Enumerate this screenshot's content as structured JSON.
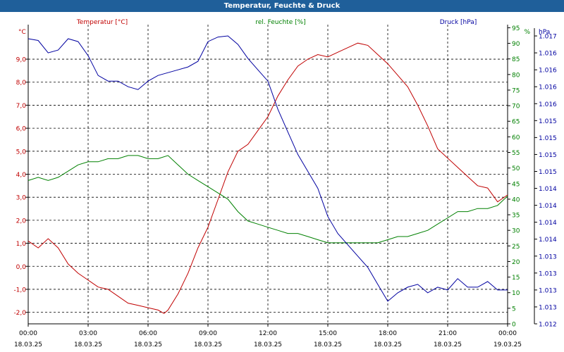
{
  "window": {
    "title": "Temperatur, Feuchte & Druck"
  },
  "colors": {
    "temperature": "#c00000",
    "humidity": "#008000",
    "pressure": "#0000a0",
    "axis": "#000000",
    "grid": "#000000"
  },
  "chart_data": {
    "type": "line",
    "grid": true,
    "x_ticks": [
      {
        "time": "00:00",
        "date": "18.03.25"
      },
      {
        "time": "03:00",
        "date": "18.03.25"
      },
      {
        "time": "06:00",
        "date": "18.03.25"
      },
      {
        "time": "09:00",
        "date": "18.03.25"
      },
      {
        "time": "12:00",
        "date": "18.03.25"
      },
      {
        "time": "15:00",
        "date": "18.03.25"
      },
      {
        "time": "18:00",
        "date": "18.03.25"
      },
      {
        "time": "21:00",
        "date": "18.03.25"
      },
      {
        "time": "00:00",
        "date": "19.03.25"
      }
    ],
    "xlim": [
      0,
      24
    ],
    "axes": {
      "left": {
        "unit": "°C",
        "ylim": [
          -2.5,
          10.5
        ],
        "ticks": [
          "9,0",
          "8,0",
          "7,0",
          "6,0",
          "5,0",
          "4,0",
          "3,0",
          "2,0",
          "1,0",
          "0,0",
          "-1,0",
          "-2,0"
        ],
        "tick_values": [
          9,
          8,
          7,
          6,
          5,
          4,
          3,
          2,
          1,
          0,
          -1,
          -2
        ]
      },
      "mid": {
        "unit": "%",
        "ylim": [
          0,
          96
        ],
        "ticks": [
          "95",
          "90",
          "85",
          "80",
          "75",
          "70",
          "65",
          "60",
          "55",
          "50",
          "45",
          "40",
          "35",
          "30",
          "25",
          "20",
          "15",
          "10",
          "5",
          "0"
        ],
        "tick_values": [
          95,
          90,
          85,
          80,
          75,
          70,
          65,
          60,
          55,
          50,
          45,
          40,
          35,
          30,
          25,
          20,
          15,
          10,
          5,
          0
        ]
      },
      "right": {
        "unit": "hPa",
        "ylim": [
          1011.9,
          1017.2
        ],
        "ticks": [
          "1.017",
          "1.016",
          "1.016",
          "1.016",
          "1.016",
          "1.015",
          "1.015",
          "1.015",
          "1.015",
          "1.014",
          "1.014",
          "1.014",
          "1.014",
          "1.013",
          "1.013",
          "1.013",
          "1.013",
          "1.012"
        ],
        "tick_values": [
          1017.0,
          1016.7,
          1016.4,
          1016.1,
          1015.8,
          1015.5,
          1015.2,
          1014.9,
          1014.6,
          1014.3,
          1014.0,
          1013.7,
          1013.4,
          1013.1,
          1012.8,
          1012.5,
          1012.2,
          1011.9
        ]
      }
    },
    "series": [
      {
        "name": "Temperatur [°C]",
        "axis": "left",
        "x": [
          0,
          0.5,
          1,
          1.5,
          2,
          2.5,
          3,
          3.5,
          4,
          4.5,
          5,
          5.5,
          6,
          6.5,
          6.8,
          7,
          7.5,
          8,
          8.5,
          9,
          9.5,
          10,
          10.5,
          11,
          11.5,
          12,
          12.5,
          13,
          13.5,
          14,
          14.5,
          15,
          15.5,
          16,
          16.5,
          17,
          17.5,
          18,
          18.5,
          19,
          19.5,
          20,
          20.5,
          21,
          21.5,
          22,
          22.5,
          23,
          23.5,
          24
        ],
        "y": [
          1.1,
          0.8,
          1.2,
          0.8,
          0.1,
          -0.3,
          -0.6,
          -0.9,
          -1.0,
          -1.3,
          -1.6,
          -1.7,
          -1.8,
          -1.9,
          -2.05,
          -1.9,
          -1.2,
          -0.3,
          0.8,
          1.7,
          2.9,
          4.1,
          5.0,
          5.3,
          5.9,
          6.5,
          7.4,
          8.1,
          8.7,
          9.0,
          9.2,
          9.1,
          9.3,
          9.5,
          9.7,
          9.6,
          9.2,
          8.8,
          8.3,
          7.8,
          7.0,
          6.1,
          5.1,
          4.7,
          4.3,
          3.9,
          3.5,
          3.4,
          2.8,
          3.1
        ]
      },
      {
        "name": "rel. Feuchte [%]",
        "axis": "mid",
        "x": [
          0,
          0.5,
          1,
          1.5,
          2,
          2.5,
          3,
          3.5,
          4,
          4.5,
          5,
          5.5,
          6,
          6.5,
          7,
          7.5,
          8,
          8.5,
          9,
          9.5,
          10,
          10.5,
          11,
          11.5,
          12,
          12.5,
          13,
          13.5,
          14,
          14.5,
          15,
          15.5,
          16,
          16.5,
          17,
          17.5,
          18,
          18.5,
          19,
          19.5,
          20,
          20.5,
          21,
          21.5,
          22,
          22.5,
          23,
          23.5,
          24
        ],
        "y": [
          46,
          47,
          46,
          47,
          49,
          51,
          52,
          52,
          53,
          53,
          54,
          54,
          53,
          53,
          54,
          51,
          48,
          46,
          44,
          42,
          40,
          36,
          33,
          32,
          31,
          30,
          29,
          29,
          28,
          27,
          26,
          26,
          26,
          26,
          26,
          26,
          27,
          28,
          28,
          29,
          30,
          32,
          34,
          36,
          36,
          37,
          37,
          38,
          41
        ]
      },
      {
        "name": "Druck [hPa]",
        "axis": "right",
        "x": [
          0,
          0.5,
          1,
          1.5,
          2,
          2.5,
          3,
          3.5,
          4,
          4.5,
          5,
          5.5,
          6,
          6.5,
          7,
          7.5,
          8,
          8.5,
          9,
          9.5,
          10,
          10.5,
          11,
          11.5,
          12,
          12.5,
          13,
          13.5,
          14,
          14.5,
          15,
          15.5,
          16,
          16.5,
          17,
          17.5,
          18,
          18.5,
          19,
          19.5,
          20,
          20.5,
          21,
          21.5,
          22,
          22.5,
          23,
          23.5,
          24
        ],
        "y": [
          1016.95,
          1016.92,
          1016.7,
          1016.75,
          1016.95,
          1016.9,
          1016.65,
          1016.3,
          1016.2,
          1016.2,
          1016.1,
          1016.05,
          1016.2,
          1016.3,
          1016.35,
          1016.4,
          1016.45,
          1016.55,
          1016.9,
          1016.98,
          1017.0,
          1016.85,
          1016.6,
          1016.4,
          1016.2,
          1015.7,
          1015.3,
          1014.9,
          1014.6,
          1014.3,
          1013.8,
          1013.5,
          1013.3,
          1013.1,
          1012.9,
          1012.6,
          1012.3,
          1012.45,
          1012.55,
          1012.6,
          1012.45,
          1012.55,
          1012.5,
          1012.7,
          1012.55,
          1012.55,
          1012.65,
          1012.5,
          1012.5
        ]
      }
    ]
  }
}
